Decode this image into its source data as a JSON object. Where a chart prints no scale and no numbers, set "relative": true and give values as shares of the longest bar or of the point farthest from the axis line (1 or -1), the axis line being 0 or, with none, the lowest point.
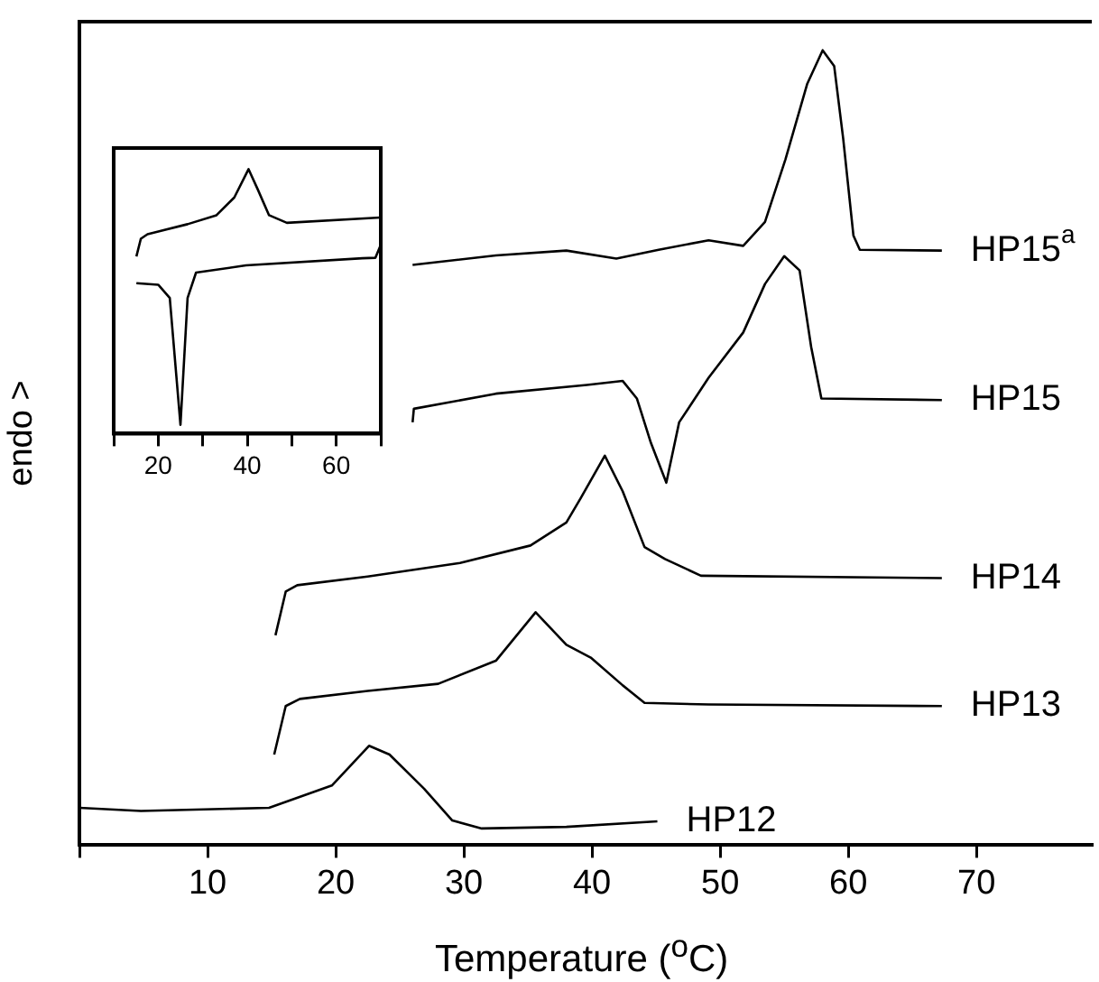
{
  "chart_data": [
    {
      "type": "line",
      "xlabel": "Temperature ($^{o}$C)",
      "ylabel": "endo >",
      "relative": true,
      "tick_labels": "x",
      "xlim": [
        0,
        79
      ],
      "xticks": [
        {
          "value": 0,
          "label": null
        },
        10,
        20,
        30,
        40,
        50,
        60,
        70
      ],
      "series": [
        {
          "name": "HP15$^{a}$",
          "color": "#000000",
          "x": [
            26.0,
            32.5,
            38.0,
            41.9,
            45.2,
            49.1,
            51.8,
            53.5,
            55.1,
            56.8,
            58.0,
            58.9,
            59.6,
            60.4,
            60.9,
            67.3
          ],
          "values": [
            0.73,
            0.742,
            0.748,
            0.738,
            0.749,
            0.761,
            0.754,
            0.784,
            0.863,
            0.958,
            1.0,
            0.98,
            0.889,
            0.767,
            0.749,
            0.748
          ]
        },
        {
          "name": "HP15",
          "color": "#000000",
          "x": [
            26.0,
            26.1,
            32.5,
            39.6,
            42.4,
            43.5,
            44.6,
            45.8,
            46.8,
            49.1,
            51.8,
            53.5,
            55.0,
            56.2,
            57.1,
            57.9,
            67.3
          ],
          "values": [
            0.532,
            0.549,
            0.568,
            0.579,
            0.584,
            0.562,
            0.506,
            0.456,
            0.532,
            0.588,
            0.645,
            0.706,
            0.741,
            0.723,
            0.627,
            0.562,
            0.56
          ]
        },
        {
          "name": "HP14",
          "color": "#000000",
          "x": [
            15.3,
            16.1,
            17.0,
            22.5,
            29.7,
            35.2,
            38.0,
            39.1,
            41.0,
            42.4,
            44.1,
            45.7,
            48.5,
            67.3
          ],
          "values": [
            0.264,
            0.319,
            0.327,
            0.338,
            0.355,
            0.377,
            0.406,
            0.436,
            0.49,
            0.445,
            0.375,
            0.36,
            0.339,
            0.336
          ]
        },
        {
          "name": "HP13",
          "color": "#000000",
          "x": [
            15.2,
            16.1,
            17.2,
            22.5,
            28.0,
            32.5,
            35.6,
            38.0,
            39.9,
            42.4,
            44.1,
            49.1,
            67.3
          ],
          "values": [
            0.114,
            0.175,
            0.184,
            0.194,
            0.203,
            0.232,
            0.293,
            0.252,
            0.236,
            0.201,
            0.179,
            0.177,
            0.175
          ]
        },
        {
          "name": "HP12",
          "color": "#000000",
          "x": [
            0,
            4.8,
            14.8,
            19.7,
            22.6,
            24.2,
            26.9,
            29.1,
            31.4,
            38.0,
            45.1
          ],
          "values": [
            0.047,
            0.043,
            0.047,
            0.075,
            0.125,
            0.114,
            0.071,
            0.031,
            0.021,
            0.023,
            0.03
          ]
        }
      ]
    },
    {
      "type": "line",
      "relative": true,
      "tick_labels": "x",
      "xlim": [
        10,
        70
      ],
      "xticks": [
        {
          "value": 10,
          "label": null
        },
        20,
        {
          "value": 30,
          "label": null
        },
        40,
        {
          "value": 50,
          "label": null
        },
        60,
        {
          "value": 70,
          "label": null
        }
      ],
      "series": [
        {
          "color": "#000000",
          "x": [
            15.1,
            16.1,
            17.6,
            26.6,
            33.1,
            37.1,
            40.3,
            42.3,
            44.9,
            48.9,
            69.9
          ],
          "values": [
            0.67,
            0.737,
            0.754,
            0.792,
            0.826,
            0.893,
            1.0,
            0.926,
            0.826,
            0.797,
            0.817
          ]
        },
        {
          "color": "#000000",
          "x": [
            15.1,
            20.0,
            22.6,
            25.0,
            26.6,
            28.5,
            39.7,
            65.9,
            68.8,
            70.0
          ],
          "values": [
            0.569,
            0.563,
            0.513,
            0.033,
            0.513,
            0.609,
            0.636,
            0.663,
            0.665,
            0.714
          ]
        }
      ]
    }
  ]
}
